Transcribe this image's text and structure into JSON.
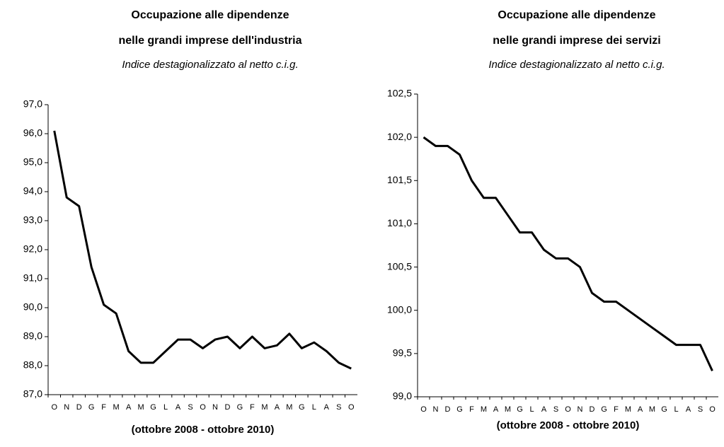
{
  "chart_data": [
    {
      "type": "line",
      "title": [
        "Occupazione alle dipendenze",
        "nelle grandi imprese dell'industria"
      ],
      "subtitle": "Indice destagionalizzato al netto c.i.g.",
      "xlabel": "(ottobre 2008 - ottobre 2010)",
      "categories": [
        "O",
        "N",
        "D",
        "G",
        "F",
        "M",
        "A",
        "M",
        "G",
        "L",
        "A",
        "S",
        "O",
        "N",
        "D",
        "G",
        "F",
        "M",
        "A",
        "M",
        "G",
        "L",
        "A",
        "S",
        "O"
      ],
      "values": [
        96.1,
        93.8,
        93.5,
        91.4,
        90.1,
        89.8,
        88.5,
        88.1,
        88.1,
        88.5,
        88.9,
        88.9,
        88.6,
        88.9,
        89.0,
        88.6,
        89.0,
        88.6,
        88.7,
        89.1,
        88.6,
        88.8,
        88.5,
        88.1,
        87.9
      ],
      "color": "#000000",
      "ylim": [
        87,
        97
      ],
      "yticks": [
        {
          "value": 87,
          "label": "87,0"
        },
        {
          "value": 88,
          "label": "88,0"
        },
        {
          "value": 89,
          "label": "89,0"
        },
        {
          "value": 90,
          "label": "90,0"
        },
        {
          "value": 91,
          "label": "91,0"
        },
        {
          "value": 92,
          "label": "92,0"
        },
        {
          "value": 93,
          "label": "93,0"
        },
        {
          "value": 94,
          "label": "94,0"
        },
        {
          "value": 95,
          "label": "95,0"
        },
        {
          "value": 96,
          "label": "96,0"
        },
        {
          "value": 97,
          "label": "97,0"
        }
      ],
      "grid": false
    },
    {
      "type": "line",
      "title": [
        "Occupazione alle dipendenze",
        "nelle grandi imprese dei servizi"
      ],
      "subtitle": "Indice destagionalizzato al netto c.i.g.",
      "xlabel": "(ottobre 2008 - ottobre 2010)",
      "categories": [
        "O",
        "N",
        "D",
        "G",
        "F",
        "M",
        "A",
        "M",
        "G",
        "L",
        "A",
        "S",
        "O",
        "N",
        "D",
        "G",
        "F",
        "M",
        "A",
        "M",
        "G",
        "L",
        "A",
        "S",
        "O"
      ],
      "values": [
        102.0,
        101.9,
        101.9,
        101.8,
        101.5,
        101.3,
        101.3,
        101.1,
        100.9,
        100.9,
        100.7,
        100.6,
        100.6,
        100.5,
        100.2,
        100.1,
        100.1,
        100.0,
        99.9,
        99.8,
        99.7,
        99.6,
        99.6,
        99.6,
        99.3
      ],
      "color": "#000000",
      "ylim": [
        99,
        102.5
      ],
      "yticks": [
        {
          "value": 99,
          "label": "99,0"
        },
        {
          "value": 99.5,
          "label": "99,5"
        },
        {
          "value": 100,
          "label": "100,0"
        },
        {
          "value": 100.5,
          "label": "100,5"
        },
        {
          "value": 101,
          "label": "101,0"
        },
        {
          "value": 101.5,
          "label": "101,5"
        },
        {
          "value": 102,
          "label": "102,0"
        },
        {
          "value": 102.5,
          "label": "102,5"
        }
      ],
      "grid": false
    }
  ]
}
